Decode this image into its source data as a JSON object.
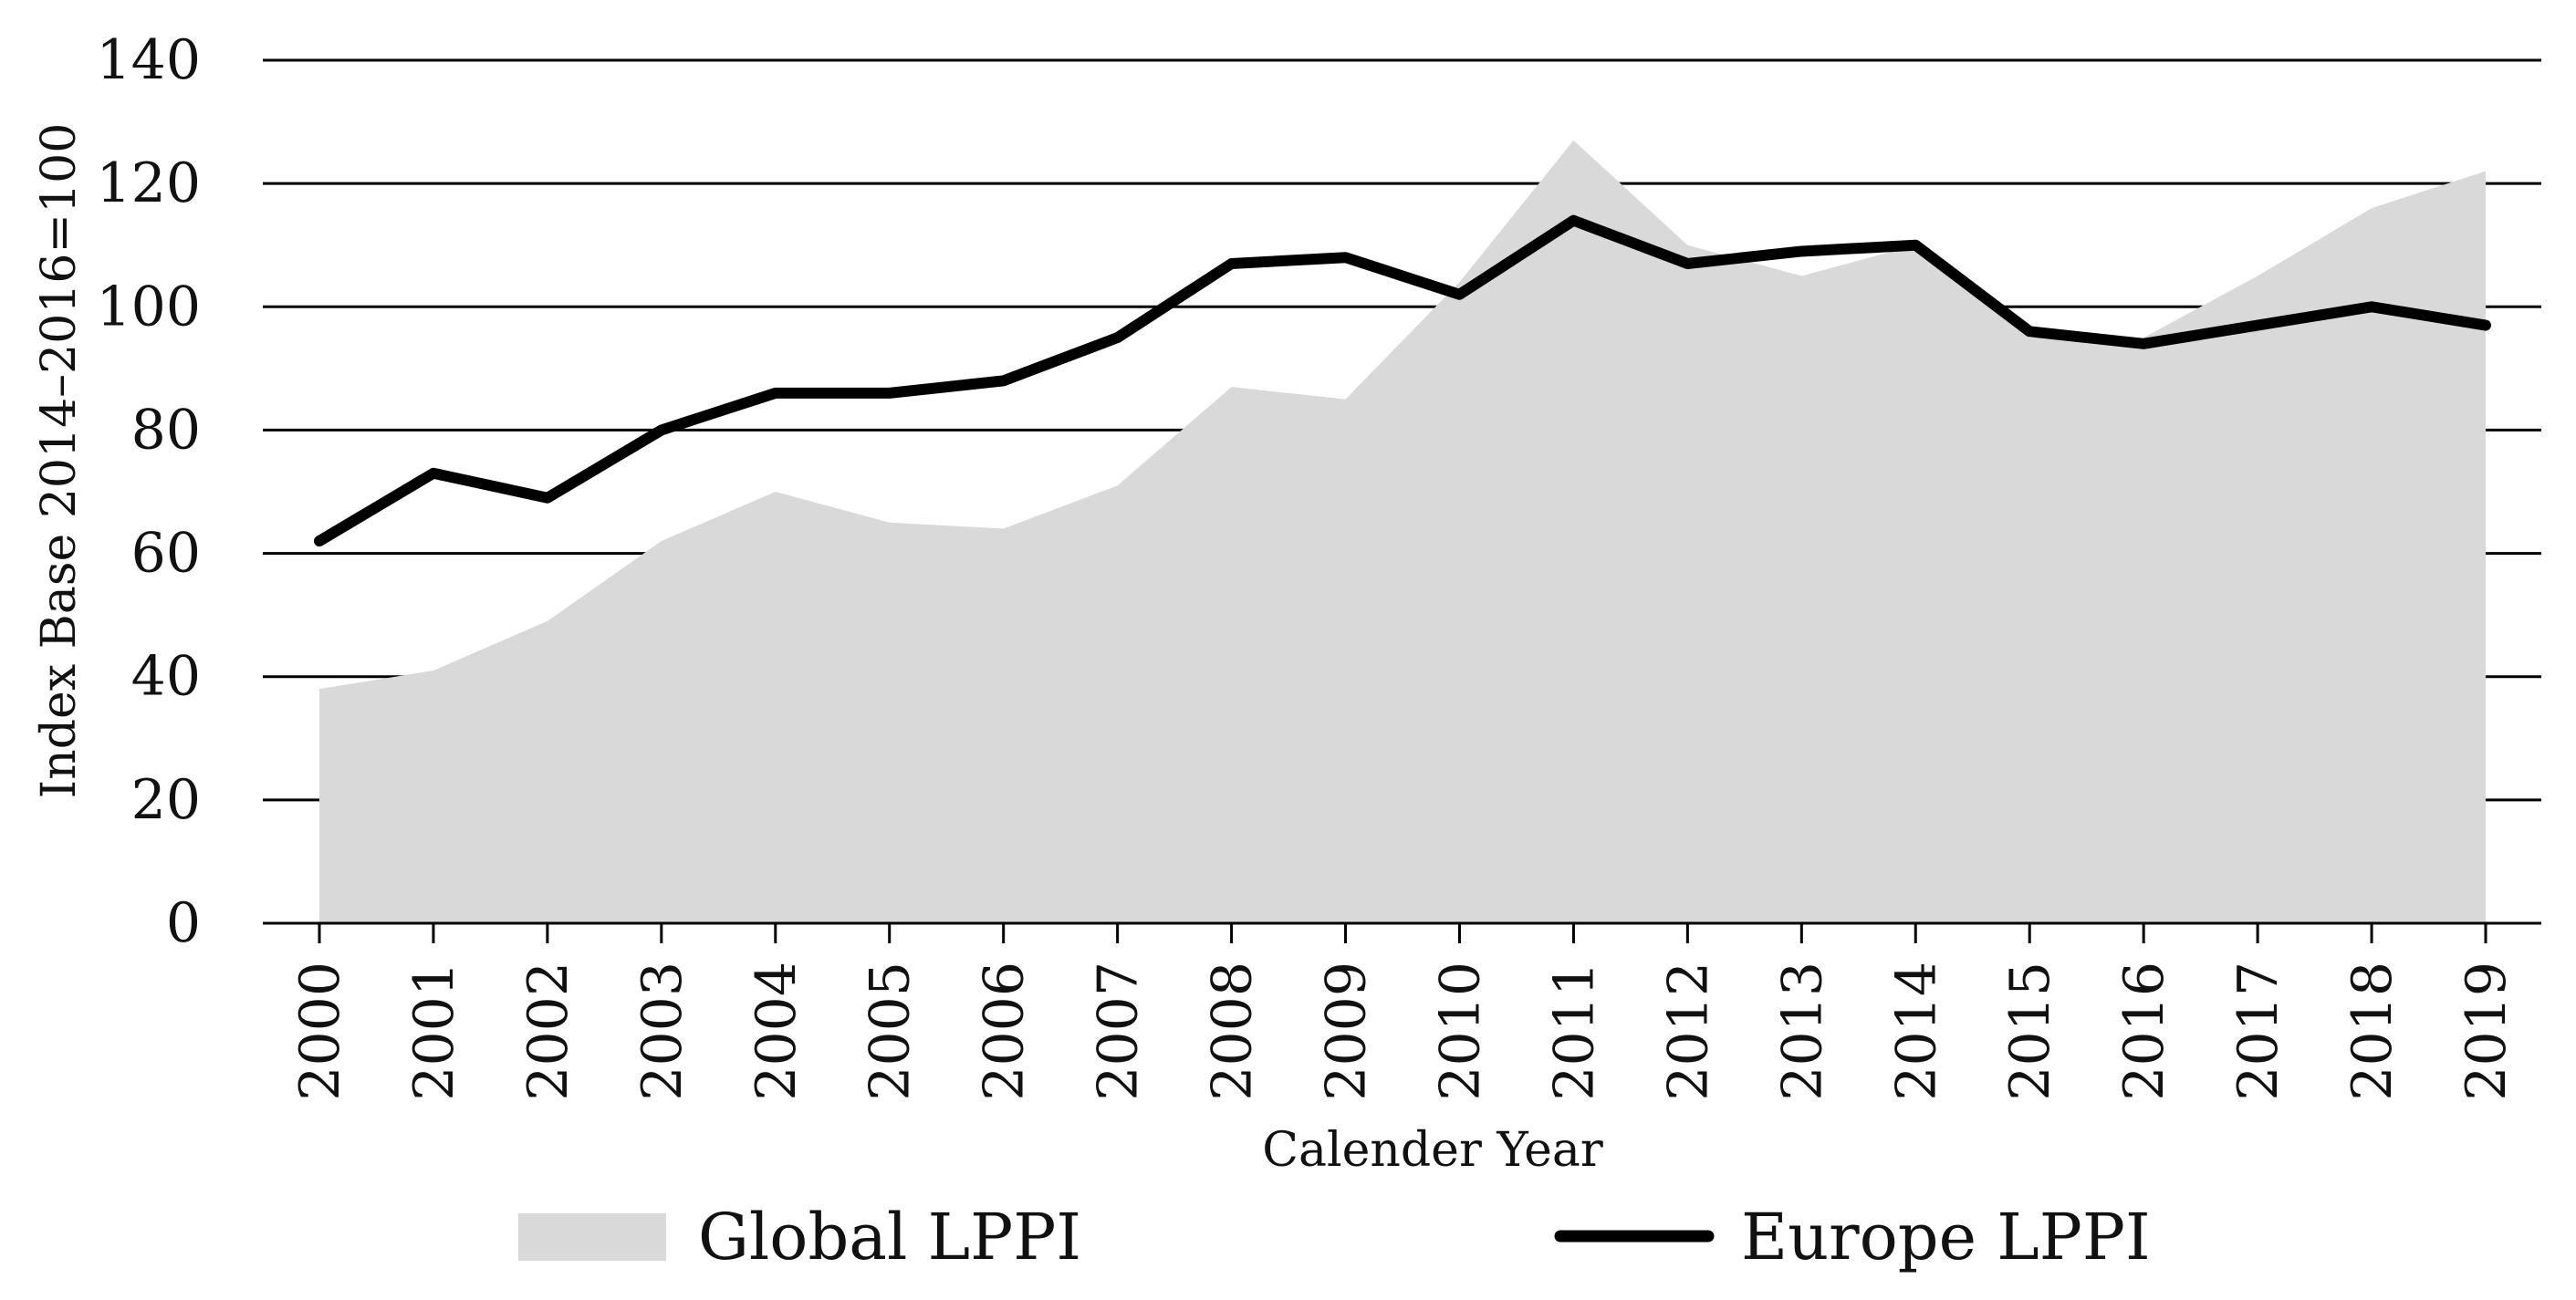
{
  "chart_data": {
    "type": "area",
    "title": "",
    "xlabel": "Calender Year",
    "ylabel": "Index Base 2014–2016=100",
    "ylim": [
      0,
      140
    ],
    "yticks": [
      0,
      20,
      40,
      60,
      80,
      100,
      120,
      140
    ],
    "grid": true,
    "legend_position": "bottom",
    "categories": [
      "2000",
      "2001",
      "2002",
      "2003",
      "2004",
      "2005",
      "2006",
      "2007",
      "2008",
      "2009",
      "2010",
      "2011",
      "2012",
      "2013",
      "2014",
      "2015",
      "2016",
      "2017",
      "2018",
      "2019"
    ],
    "series": [
      {
        "name": "Global LPPI",
        "kind": "area",
        "color": "#d9d9d9",
        "values": [
          38,
          41,
          49,
          62,
          70,
          65,
          64,
          71,
          87,
          85,
          104,
          127,
          110,
          105,
          110,
          95,
          95,
          105,
          116,
          122
        ]
      },
      {
        "name": "Europe LPPI",
        "kind": "line",
        "color": "#000000",
        "values": [
          62,
          73,
          69,
          80,
          86,
          86,
          88,
          95,
          107,
          108,
          102,
          114,
          107,
          109,
          110,
          96,
          94,
          97,
          100,
          97
        ]
      }
    ]
  }
}
